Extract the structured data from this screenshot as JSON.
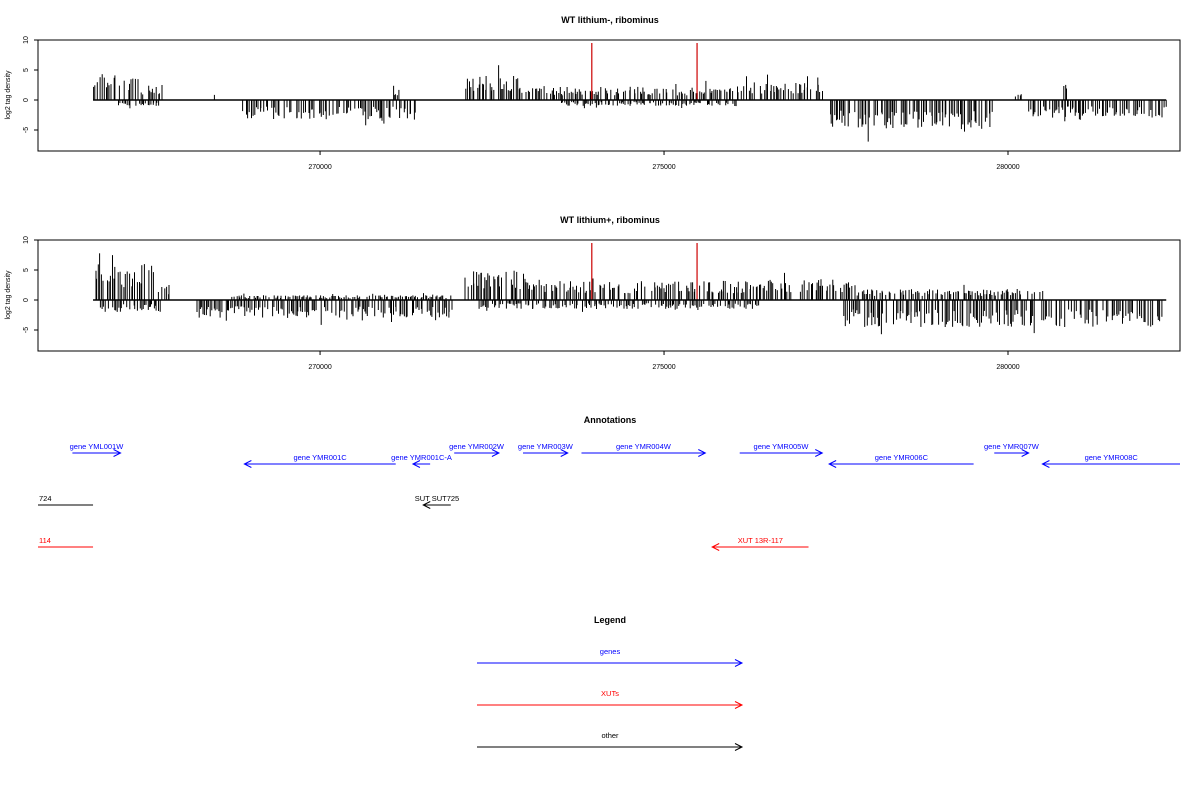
{
  "chart_data": [
    {
      "type": "bar",
      "title": "WT lithium-, ribominus",
      "xlabel": "",
      "ylabel": "log2 tag density",
      "xlim": [
        265900,
        282500
      ],
      "ylim": [
        -8.5,
        10
      ],
      "x_ticks": [
        270000,
        275000,
        280000
      ],
      "x_tick_labels": [
        "270000",
        "275000",
        "280000"
      ],
      "y_ticks": [
        -5,
        0,
        5,
        10
      ],
      "y_tick_labels": [
        "-5",
        "0",
        "5",
        "10"
      ],
      "grid": false,
      "segments": [
        {
          "start": 266700,
          "end": 267400,
          "sign": 1,
          "amp": 4.5
        },
        {
          "start": 267400,
          "end": 267700,
          "sign": 1,
          "amp": 2.5
        },
        {
          "start": 267050,
          "end": 267650,
          "sign": -1,
          "amp": 1.0
        },
        {
          "start": 268400,
          "end": 268450,
          "sign": 1,
          "amp": 2.0
        },
        {
          "start": 268850,
          "end": 271400,
          "sign": -1,
          "amp": 3.2
        },
        {
          "start": 271050,
          "end": 271150,
          "sign": 1,
          "amp": 1.8
        },
        {
          "start": 272100,
          "end": 272900,
          "sign": 1,
          "amp": 4.0
        },
        {
          "start": 272900,
          "end": 276000,
          "sign": 1,
          "amp": 2.2
        },
        {
          "start": 273500,
          "end": 276050,
          "sign": -1,
          "amp": 1.0
        },
        {
          "start": 276050,
          "end": 277300,
          "sign": 1,
          "amp": 3.0
        },
        {
          "start": 277400,
          "end": 279800,
          "sign": -1,
          "amp": 5.0
        },
        {
          "start": 280100,
          "end": 280200,
          "sign": 1,
          "amp": 1.0
        },
        {
          "start": 280800,
          "end": 280850,
          "sign": 1,
          "amp": 2.6
        },
        {
          "start": 280300,
          "end": 282300,
          "sign": -1,
          "amp": 3.0
        }
      ],
      "markers": [
        273950,
        275480
      ],
      "marker_height": 9.5
    },
    {
      "type": "bar",
      "title": "WT lithium+, ribominus",
      "xlabel": "",
      "ylabel": "log2 tag density",
      "xlim": [
        265900,
        282500
      ],
      "ylim": [
        -8.5,
        10
      ],
      "x_ticks": [
        270000,
        275000,
        280000
      ],
      "x_tick_labels": [
        "270000",
        "275000",
        "280000"
      ],
      "y_ticks": [
        -5,
        0,
        5,
        10
      ],
      "y_tick_labels": [
        "-5",
        "0",
        "5",
        "10"
      ],
      "grid": false,
      "segments": [
        {
          "start": 266700,
          "end": 267600,
          "sign": 1,
          "amp": 6.0
        },
        {
          "start": 267600,
          "end": 267800,
          "sign": 1,
          "amp": 2.5
        },
        {
          "start": 266800,
          "end": 267700,
          "sign": -1,
          "amp": 2.0
        },
        {
          "start": 268200,
          "end": 271900,
          "sign": -1,
          "amp": 3.0
        },
        {
          "start": 268700,
          "end": 271900,
          "sign": 1,
          "amp": 0.8
        },
        {
          "start": 272100,
          "end": 273000,
          "sign": 1,
          "amp": 5.0
        },
        {
          "start": 273000,
          "end": 276400,
          "sign": 1,
          "amp": 3.2
        },
        {
          "start": 272300,
          "end": 276400,
          "sign": -1,
          "amp": 1.5
        },
        {
          "start": 276400,
          "end": 277800,
          "sign": 1,
          "amp": 3.5
        },
        {
          "start": 277600,
          "end": 282300,
          "sign": -1,
          "amp": 4.5
        },
        {
          "start": 277800,
          "end": 280500,
          "sign": 1,
          "amp": 1.8
        }
      ],
      "markers": [
        273950,
        275480
      ],
      "marker_height": 9.5
    }
  ],
  "annotations": {
    "title": "Annotations",
    "genes": [
      {
        "label": "gene YML001W",
        "from": 266400,
        "to": 267100,
        "row": 0,
        "dir": "right"
      },
      {
        "label": "gene YMR001C",
        "from": 271100,
        "to": 268900,
        "row": 1,
        "dir": "left"
      },
      {
        "label": "gene YMR001C-A",
        "from": 271600,
        "to": 271350,
        "row": 1,
        "dir": "left"
      },
      {
        "label": "gene YMR002W",
        "from": 271950,
        "to": 272600,
        "row": 0,
        "dir": "right"
      },
      {
        "label": "gene YMR003W",
        "from": 272950,
        "to": 273600,
        "row": 0,
        "dir": "right"
      },
      {
        "label": "gene YMR004W",
        "from": 273800,
        "to": 275600,
        "row": 0,
        "dir": "right"
      },
      {
        "label": "gene YMR005W",
        "from": 276100,
        "to": 277300,
        "row": 0,
        "dir": "right"
      },
      {
        "label": "gene YMR006C",
        "from": 279500,
        "to": 277400,
        "row": 1,
        "dir": "left"
      },
      {
        "label": "gene YMR007W",
        "from": 279800,
        "to": 280300,
        "row": 0,
        "dir": "right"
      },
      {
        "label": "gene YMR008C",
        "from": 282500,
        "to": 280500,
        "row": 1,
        "dir": "left"
      }
    ],
    "others": [
      {
        "label": "724",
        "from": 265900,
        "to": 266700,
        "dir": "none"
      },
      {
        "label": "SUT SUT725",
        "from": 271900,
        "to": 271500,
        "dir": "left"
      }
    ],
    "xuts": [
      {
        "label": "114",
        "from": 265900,
        "to": 266700,
        "dir": "none"
      },
      {
        "label": "XUT 13R-117",
        "from": 277100,
        "to": 275700,
        "dir": "left"
      }
    ]
  },
  "legend": {
    "title": "Legend",
    "items": [
      {
        "label": "genes",
        "color": "#0000ff"
      },
      {
        "label": "XUTs",
        "color": "#ff0000"
      },
      {
        "label": "other",
        "color": "#000000"
      }
    ]
  },
  "colors": {
    "genes": "#0000ff",
    "xuts": "#ff0000",
    "other": "#000000",
    "marker": "#cc0000",
    "bars": "#000000"
  }
}
